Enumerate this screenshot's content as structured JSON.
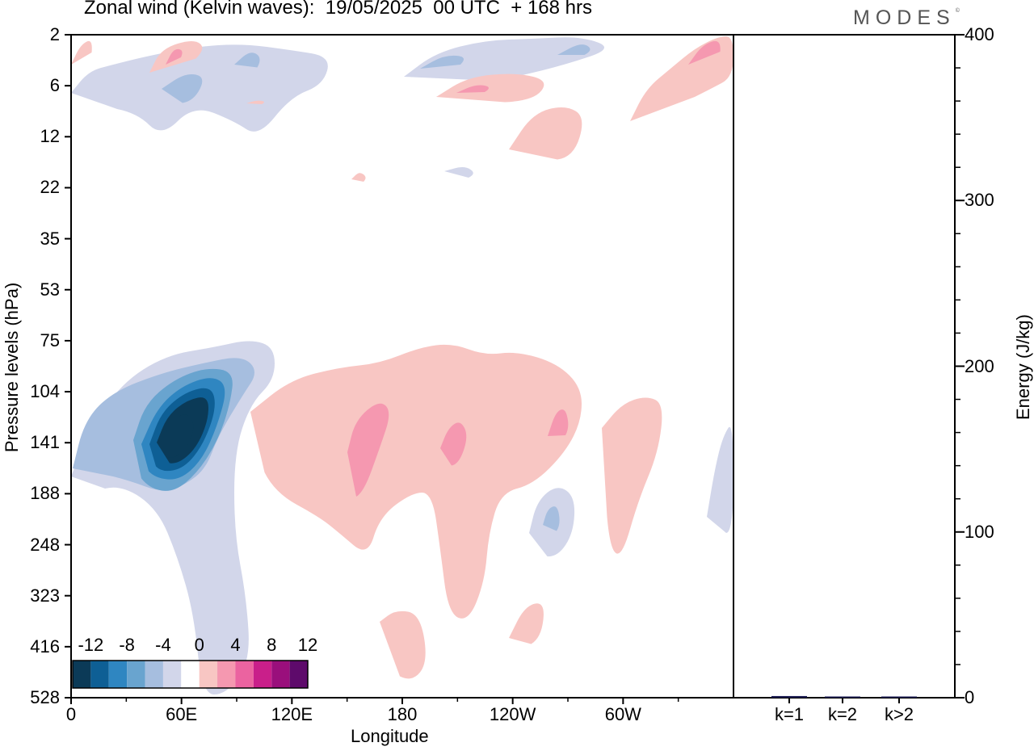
{
  "header": {
    "title": "Zonal wind (Kelvin waves):  19/05/2025  00 UTC  + 168 hrs",
    "brand": "MODES",
    "brand_mark": "©"
  },
  "chart_data": [
    {
      "type": "heatmap",
      "title": "Zonal wind (Kelvin waves):  19/05/2025  00 UTC  + 168 hrs",
      "xlabel": "Longitude",
      "ylabel": "Pressure levels (hPa)",
      "x_ticks": [
        "0",
        "60E",
        "120E",
        "180",
        "120W",
        "60W"
      ],
      "x_range_degrees_east": [
        0,
        360
      ],
      "y_ticks": [
        "2",
        "6",
        "12",
        "22",
        "35",
        "53",
        "75",
        "104",
        "141",
        "188",
        "248",
        "323",
        "416",
        "528"
      ],
      "colorbar": {
        "labels": [
          "-12",
          "-8",
          "-4",
          "0",
          "4",
          "8",
          "12"
        ],
        "levels": [
          -14,
          -12,
          -10,
          -8,
          -6,
          -4,
          -2,
          2,
          4,
          6,
          8,
          10,
          12,
          14
        ],
        "colors": [
          "#0b3a57",
          "#0e5f95",
          "#2f86c1",
          "#69a4cf",
          "#a6bedf",
          "#d2d6ea",
          "#ffffff",
          "#f8c6c3",
          "#f598b0",
          "#eb63a0",
          "#c91f8a",
          "#9a0f7c",
          "#5e0a6b"
        ]
      },
      "features": [
        {
          "sign": "negative",
          "peak": -14,
          "lon": 45,
          "level_hpa": 141
        },
        {
          "sign": "negative",
          "peak": -4,
          "lon": 10,
          "level_hpa": 120
        },
        {
          "sign": "negative",
          "peak": -4,
          "lon": 195,
          "level_hpa": 2
        },
        {
          "sign": "negative",
          "peak": -4,
          "lon": 262,
          "level_hpa": 220
        },
        {
          "sign": "positive",
          "peak": 6,
          "lon": 160,
          "level_hpa": 150
        },
        {
          "sign": "positive",
          "peak": 6,
          "lon": 212,
          "level_hpa": 141
        },
        {
          "sign": "positive",
          "peak": 6,
          "lon": 262,
          "level_hpa": 130
        },
        {
          "sign": "positive",
          "peak": 6,
          "lon": 345,
          "level_hpa": 3
        },
        {
          "sign": "positive",
          "peak": 6,
          "lon": 210,
          "level_hpa": 6
        },
        {
          "sign": "positive",
          "peak": 4,
          "lon": 175,
          "level_hpa": 440
        }
      ]
    },
    {
      "type": "bar",
      "ylabel": "Energy (J/kg)",
      "categories": [
        "k=1",
        "k=2",
        "k>2"
      ],
      "values": [
        1.0,
        0.3,
        0.6
      ],
      "ylim": [
        0,
        400
      ],
      "y_ticks": [
        "0",
        "100",
        "200",
        "300",
        "400"
      ],
      "bar_color": "#1a1a50"
    }
  ]
}
